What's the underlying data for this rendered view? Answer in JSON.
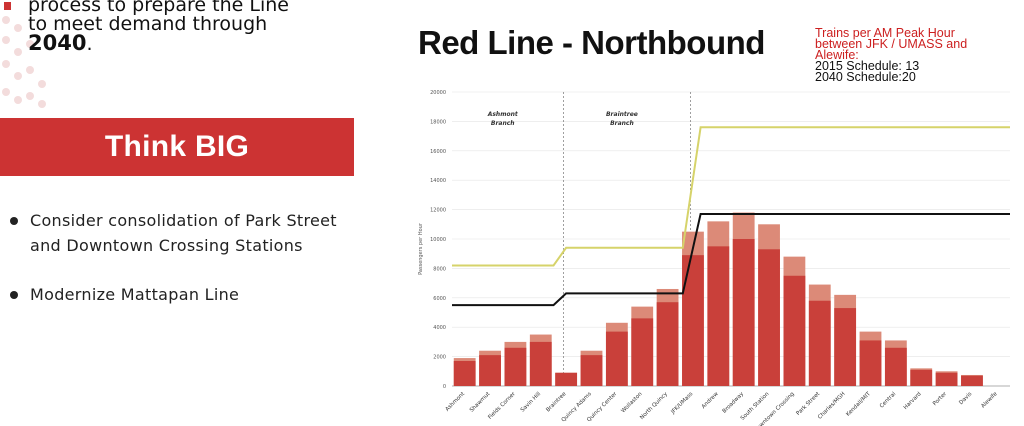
{
  "intro": {
    "clipped_line": "process to prepare the Line",
    "line2": "to meet demand through",
    "year": "2040",
    "period": "."
  },
  "banner": {
    "label": "Think BIG"
  },
  "bullets": [
    {
      "label": "Consider consolidation of Park Street and Downtown Crossing Stations"
    },
    {
      "label": "Modernize Mattapan Line"
    }
  ],
  "chart_note": {
    "line1": "Trains per AM Peak Hour",
    "line2": "between JFK / UMASS and",
    "line3": "Alewife:",
    "line4": "2015 Schedule: 13",
    "line5": "2040 Schedule:20"
  },
  "colors": {
    "banner": "#cc3333",
    "bar_dark": "#c9403a",
    "bar_light": "#dc8a78",
    "line_2040": "#d6d36a",
    "line_2015": "#111111",
    "note_red": "#cc1f1f"
  },
  "chart_data": {
    "type": "bar",
    "title": "Red Line - Northbound",
    "ylabel": "Passengers per Hour",
    "ylim": [
      0,
      20000
    ],
    "yticks": [
      0,
      2000,
      4000,
      6000,
      8000,
      10000,
      12000,
      14000,
      16000,
      18000,
      20000
    ],
    "branch_labels": [
      {
        "line1": "Ashmont",
        "line2": "Branch"
      },
      {
        "line1": "Braintree",
        "line2": "Branch"
      }
    ],
    "categories": [
      "Ashmont",
      "Shawmut",
      "Fields Corner",
      "Savin Hill",
      "Braintree",
      "Quincy Adams",
      "Quincy Center",
      "Wollaston",
      "North Quincy",
      "JFK/UMass",
      "Andrew",
      "Broadway",
      "South Station",
      "Downtown Crossing",
      "Park Street",
      "Charles/MGH",
      "Kendall/MIT",
      "Central",
      "Harvard",
      "Porter",
      "Davis",
      "Alewife"
    ],
    "series": [
      {
        "name": "2015",
        "values": [
          1700,
          2100,
          2600,
          3000,
          900,
          2100,
          3700,
          4600,
          5700,
          8900,
          9500,
          10000,
          9300,
          7500,
          5800,
          5300,
          3100,
          2600,
          1100,
          900,
          700,
          0
        ]
      },
      {
        "name": "2040",
        "values": [
          1900,
          2400,
          3000,
          3500,
          900,
          2400,
          4300,
          5400,
          6600,
          10500,
          11200,
          11800,
          11000,
          8800,
          6900,
          6200,
          3700,
          3100,
          1200,
          1000,
          750,
          0
        ]
      }
    ],
    "capacity_lines": [
      {
        "name": "2040",
        "points": [
          [
            -0.5,
            8200
          ],
          [
            3.5,
            8200
          ],
          [
            4,
            9400
          ],
          [
            8.6,
            9400
          ],
          [
            9.3,
            17600
          ],
          [
            21.5,
            17600
          ]
        ]
      },
      {
        "name": "2015",
        "points": [
          [
            -0.5,
            5500
          ],
          [
            3.5,
            5500
          ],
          [
            4,
            6300
          ],
          [
            8.6,
            6300
          ],
          [
            9.3,
            11700
          ],
          [
            21.5,
            11700
          ]
        ]
      }
    ]
  }
}
